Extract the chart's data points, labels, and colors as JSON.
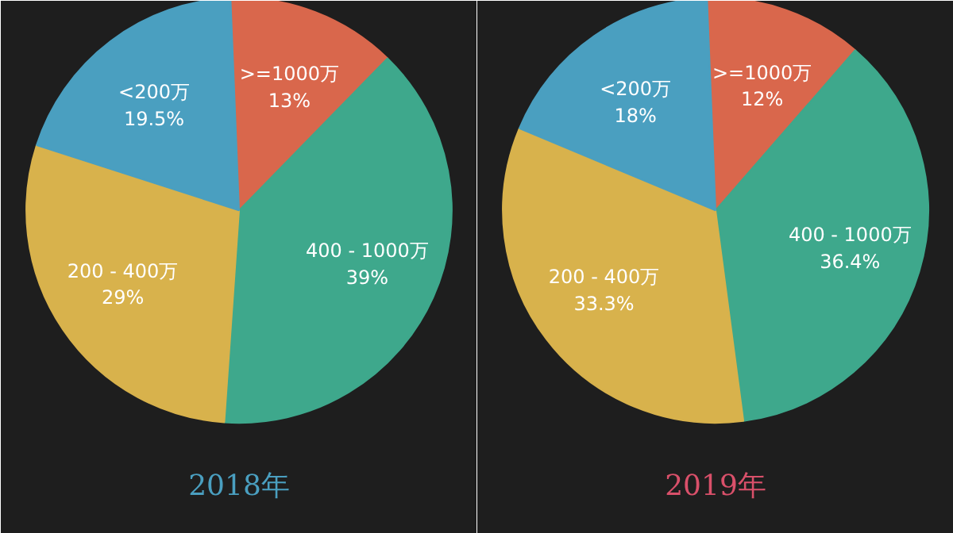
{
  "chart_data": [
    {
      "type": "pie",
      "title": "2018年",
      "categories": [
        ">=1000万",
        "400 - 1000万",
        "200 - 400万",
        "<200万"
      ],
      "values": [
        13,
        39,
        29,
        19.5
      ],
      "value_labels": [
        "13%",
        "39%",
        "29%",
        "19.5%"
      ],
      "colors": [
        "#d9674c",
        "#3ea88c",
        "#d8b24c",
        "#4a9fc0"
      ]
    },
    {
      "type": "pie",
      "title": "2019年",
      "categories": [
        ">=1000万",
        "400 - 1000万",
        "200 - 400万",
        "<200万"
      ],
      "values": [
        12,
        36.4,
        33.3,
        18
      ],
      "value_labels": [
        "12%",
        "36.4%",
        "33.3%",
        "18%"
      ],
      "colors": [
        "#d9674c",
        "#3ea88c",
        "#d8b24c",
        "#4a9fc0"
      ]
    }
  ]
}
